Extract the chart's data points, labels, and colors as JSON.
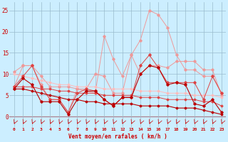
{
  "x": [
    0,
    1,
    2,
    3,
    4,
    5,
    6,
    7,
    8,
    9,
    10,
    11,
    12,
    13,
    14,
    15,
    16,
    17,
    18,
    19,
    20,
    21,
    22,
    23
  ],
  "line_light_rafales": [
    7.0,
    12.0,
    12.0,
    9.5,
    7.0,
    7.0,
    7.0,
    6.5,
    6.0,
    5.5,
    19.0,
    13.5,
    9.5,
    14.5,
    18.0,
    25.0,
    24.0,
    21.0,
    14.5,
    11.0,
    11.0,
    9.5,
    9.5,
    5.5
  ],
  "line_light_moy": [
    10.5,
    12.0,
    12.0,
    7.5,
    4.0,
    4.0,
    1.0,
    6.5,
    6.5,
    10.0,
    9.5,
    5.5,
    5.5,
    14.5,
    10.0,
    12.0,
    12.0,
    11.5,
    13.0,
    13.0,
    13.0,
    11.0,
    11.0,
    5.0
  ],
  "line_mid_rafales": [
    7.0,
    9.5,
    12.0,
    7.0,
    4.0,
    4.0,
    1.0,
    5.5,
    6.5,
    6.0,
    4.0,
    2.5,
    4.5,
    4.5,
    12.0,
    14.5,
    11.5,
    8.0,
    8.0,
    8.0,
    8.0,
    4.0,
    9.5,
    5.5
  ],
  "line_dark_rafales": [
    6.5,
    9.0,
    7.5,
    3.5,
    3.5,
    3.5,
    0.5,
    4.0,
    6.0,
    6.0,
    4.0,
    2.5,
    4.5,
    4.5,
    10.0,
    12.0,
    11.5,
    7.5,
    8.0,
    7.5,
    3.0,
    2.5,
    4.0,
    1.0
  ],
  "line_light_trend": [
    10.0,
    9.5,
    9.0,
    8.5,
    8.0,
    7.5,
    7.5,
    7.0,
    7.0,
    7.0,
    6.5,
    6.5,
    6.5,
    6.5,
    6.0,
    6.0,
    6.0,
    5.5,
    5.5,
    5.5,
    5.0,
    5.0,
    5.0,
    4.5
  ],
  "line_mid_trend": [
    7.0,
    7.0,
    7.0,
    6.5,
    6.5,
    6.0,
    6.0,
    5.5,
    5.5,
    5.5,
    5.0,
    5.0,
    5.0,
    5.0,
    4.5,
    4.5,
    4.5,
    4.0,
    4.0,
    4.0,
    4.0,
    3.5,
    3.5,
    2.5
  ],
  "line_dark_trend": [
    6.5,
    6.5,
    6.0,
    5.5,
    5.0,
    4.5,
    4.0,
    4.0,
    3.5,
    3.5,
    3.0,
    3.0,
    3.0,
    3.0,
    2.5,
    2.5,
    2.5,
    2.5,
    2.0,
    2.0,
    2.0,
    1.5,
    1.0,
    0.5
  ],
  "color_dark": "#bb0000",
  "color_mid": "#dd4444",
  "color_light": "#ee9999",
  "color_light2": "#ffbbbb",
  "bg_color": "#cceeff",
  "grid_color": "#99bbcc",
  "xlabel": "Vent moyen/en rafales ( km/h )",
  "yticks": [
    0,
    5,
    10,
    15,
    20,
    25
  ],
  "xlim": [
    -0.5,
    23.5
  ],
  "ylim": [
    -2.5,
    27
  ]
}
